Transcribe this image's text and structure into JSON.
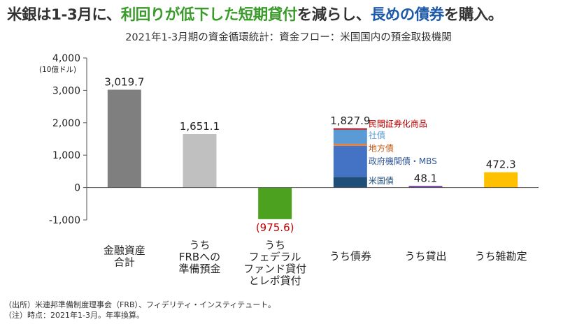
{
  "headline": {
    "part1": "米銀は1-3月に、",
    "part2": "利回りが低下した短期貸付",
    "part3": "を減らし、",
    "part4": "長めの債券",
    "part5": "を購入。"
  },
  "subtitle": "2021年1-3月期の資金循環統計：資金フロー：米国国内の預金取扱機関",
  "chart_data": {
    "type": "bar",
    "title": "2021年1-3月期の資金循環統計：資金フロー：米国国内の預金取扱機関",
    "ylabel": "(10億ドル)",
    "ylim": [
      -1000,
      4000
    ],
    "yticks": [
      -1000,
      0,
      1000,
      2000,
      3000,
      4000
    ],
    "ytick_labels": [
      "-1,000",
      "0",
      "1,000",
      "2,000",
      "3,000",
      "4,000"
    ],
    "grid": false,
    "categories": [
      {
        "lines": [
          "金融資産",
          "合計"
        ]
      },
      {
        "lines": [
          "うち",
          "FRBへの",
          "準備預金"
        ]
      },
      {
        "lines": [
          "うち",
          "フェデラル",
          "ファンド貸付",
          "とレポ貸付"
        ]
      },
      {
        "lines": [
          "うち債券"
        ]
      },
      {
        "lines": [
          "うち貸出"
        ]
      },
      {
        "lines": [
          "うち雑勘定"
        ]
      }
    ],
    "values": [
      3019.7,
      1651.1,
      -975.6,
      1827.9,
      48.1,
      472.3
    ],
    "value_labels": [
      "3,019.7",
      "1,651.1",
      "(975.6)",
      "1,827.9",
      "48.1",
      "472.3"
    ],
    "colors": [
      "#7f7f7f",
      "#c0c0c0",
      "#4ca21f",
      "#3c6fc4",
      "#7030a0",
      "#ffc000"
    ],
    "label_colors": [
      "#222222",
      "#222222",
      "#c00000",
      "#222222",
      "#222222",
      "#222222"
    ],
    "stacked_bar": {
      "category_index": 3,
      "segments": [
        {
          "name": "米国債",
          "value": 330,
          "color": "#1f4e79",
          "label_color": "#1f4e79"
        },
        {
          "name": "政府機関債・MBS",
          "value": 960,
          "color": "#4472c4",
          "label_color": "#2f5597"
        },
        {
          "name": "地方債",
          "value": 60,
          "color": "#ed7d31",
          "label_color": "#c55a11"
        },
        {
          "name": "社債",
          "value": 440,
          "color": "#5b9bd5",
          "label_color": "#5b9bd5"
        },
        {
          "name": "民間証券化商品",
          "value": 37.9,
          "color": "#c00000",
          "label_color": "#c00000"
        }
      ]
    }
  },
  "notes": [
    "（出所）米連邦準備制度理事会（FRB）、フィデリティ・インスティテュート。",
    "（注）時点：2021年1-3月。年率換算。"
  ]
}
